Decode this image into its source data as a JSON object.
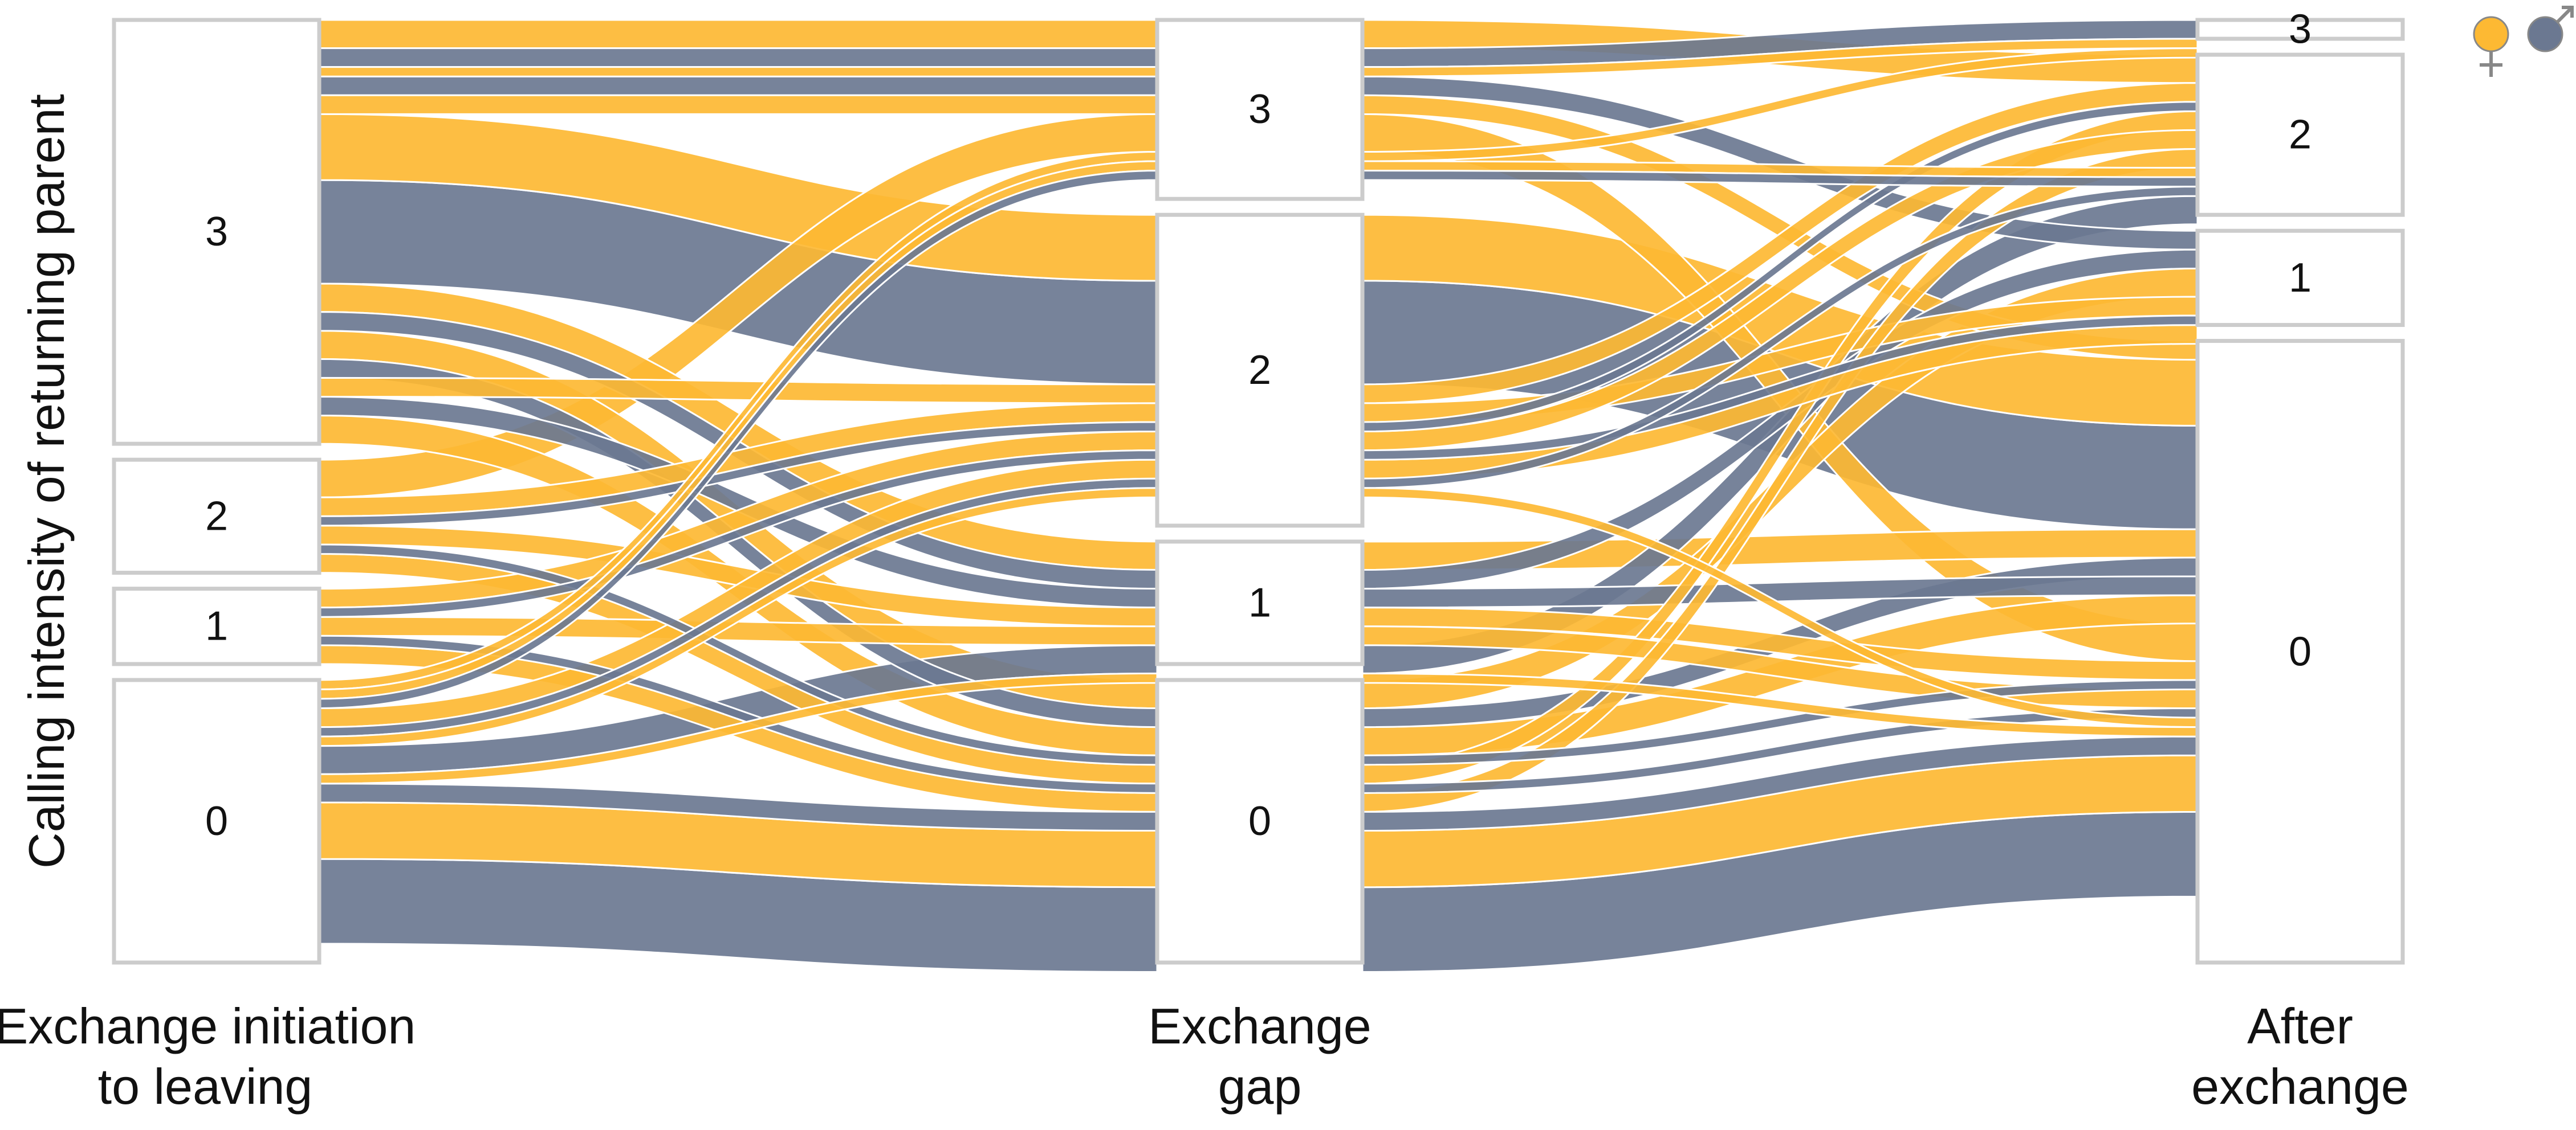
{
  "chart_data": {
    "type": "alluvial",
    "ylabel": "Calling intensity of returning parent",
    "stages": [
      "Exchange initiation\nto leaving",
      "Exchange\ngap",
      "After\nexchange"
    ],
    "levels": [
      "3",
      "2",
      "1",
      "0"
    ],
    "legend": [
      {
        "symbol": "♀",
        "color": "#FDB933"
      },
      {
        "symbol": "♂",
        "color": "#6B7891"
      }
    ],
    "colors": {
      "female": "#FDB933",
      "male": "#6B7891"
    },
    "stage_totals": [
      {
        "3": 45,
        "2": 12,
        "1": 8,
        "0": 30
      },
      {
        "3": 19,
        "2": 33,
        "1": 13,
        "0": 30
      },
      {
        "3": 2,
        "2": 17,
        "1": 10,
        "0": 66
      }
    ],
    "flows": [
      {
        "sex": "female",
        "path": [
          "3",
          "3",
          "2"
        ],
        "value": 3
      },
      {
        "sex": "male",
        "path": [
          "3",
          "3",
          "3"
        ],
        "value": 2
      },
      {
        "sex": "female",
        "path": [
          "3",
          "3",
          "3"
        ],
        "value": 1
      },
      {
        "sex": "male",
        "path": [
          "3",
          "3",
          "1"
        ],
        "value": 2
      },
      {
        "sex": "female",
        "path": [
          "3",
          "3",
          "0"
        ],
        "value": 2
      },
      {
        "sex": "female",
        "path": [
          "3",
          "2",
          "0"
        ],
        "value": 7
      },
      {
        "sex": "male",
        "path": [
          "3",
          "2",
          "0"
        ],
        "value": 11
      },
      {
        "sex": "female",
        "path": [
          "3",
          "1",
          "0"
        ],
        "value": 3
      },
      {
        "sex": "male",
        "path": [
          "3",
          "1",
          "1"
        ],
        "value": 2
      },
      {
        "sex": "female",
        "path": [
          "3",
          "0",
          "1"
        ],
        "value": 3
      },
      {
        "sex": "male",
        "path": [
          "3",
          "0",
          "0"
        ],
        "value": 2
      },
      {
        "sex": "female",
        "path": [
          "3",
          "2",
          "2"
        ],
        "value": 2
      },
      {
        "sex": "male",
        "path": [
          "3",
          "1",
          "0"
        ],
        "value": 2
      },
      {
        "sex": "female",
        "path": [
          "3",
          "0",
          "0"
        ],
        "value": 3
      },
      {
        "sex": "female",
        "path": [
          "2",
          "3",
          "0"
        ],
        "value": 4
      },
      {
        "sex": "female",
        "path": [
          "2",
          "2",
          "1"
        ],
        "value": 2
      },
      {
        "sex": "male",
        "path": [
          "2",
          "2",
          "2"
        ],
        "value": 1
      },
      {
        "sex": "female",
        "path": [
          "2",
          "1",
          "0"
        ],
        "value": 2
      },
      {
        "sex": "male",
        "path": [
          "2",
          "0",
          "0"
        ],
        "value": 1
      },
      {
        "sex": "female",
        "path": [
          "2",
          "0",
          "2"
        ],
        "value": 2
      },
      {
        "sex": "female",
        "path": [
          "1",
          "2",
          "2"
        ],
        "value": 2
      },
      {
        "sex": "male",
        "path": [
          "1",
          "2",
          "1"
        ],
        "value": 1
      },
      {
        "sex": "female",
        "path": [
          "1",
          "1",
          "0"
        ],
        "value": 2
      },
      {
        "sex": "male",
        "path": [
          "1",
          "0",
          "0"
        ],
        "value": 1
      },
      {
        "sex": "female",
        "path": [
          "1",
          "0",
          "2"
        ],
        "value": 2
      },
      {
        "sex": "female",
        "path": [
          "0",
          "3",
          "3"
        ],
        "value": 1
      },
      {
        "sex": "female",
        "path": [
          "0",
          "3",
          "2"
        ],
        "value": 1
      },
      {
        "sex": "male",
        "path": [
          "0",
          "3",
          "2"
        ],
        "value": 1
      },
      {
        "sex": "female",
        "path": [
          "0",
          "2",
          "1"
        ],
        "value": 2
      },
      {
        "sex": "male",
        "path": [
          "0",
          "2",
          "2"
        ],
        "value": 1
      },
      {
        "sex": "female",
        "path": [
          "0",
          "2",
          "0"
        ],
        "value": 1
      },
      {
        "sex": "male",
        "path": [
          "0",
          "1",
          "2"
        ],
        "value": 3
      },
      {
        "sex": "female",
        "path": [
          "0",
          "1",
          "0"
        ],
        "value": 1
      },
      {
        "sex": "male",
        "path": [
          "0",
          "0",
          "0"
        ],
        "value": 2
      },
      {
        "sex": "female",
        "path": [
          "0",
          "0",
          "0"
        ],
        "value": 6
      },
      {
        "sex": "male",
        "path": [
          "0",
          "0",
          "0"
        ],
        "value": 9
      }
    ]
  }
}
